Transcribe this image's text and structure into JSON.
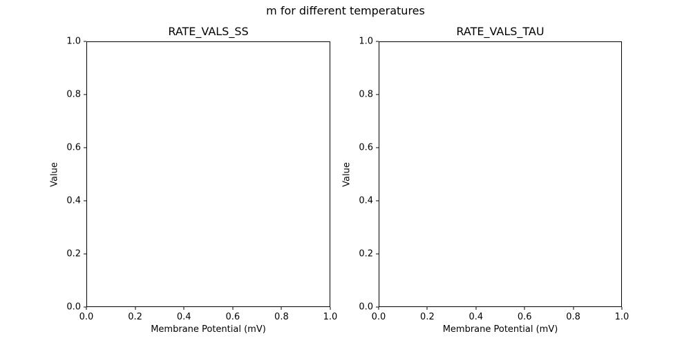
{
  "figure": {
    "suptitle": "m for different temperatures",
    "background_color": "#ffffff",
    "text_color": "#000000",
    "spine_color": "#000000"
  },
  "chart_data": [
    {
      "type": "line",
      "title": "RATE_VALS_SS",
      "xlabel": "Membrane Potential (mV)",
      "ylabel": "Value",
      "xlim": [
        0.0,
        1.0
      ],
      "ylim": [
        0.0,
        1.0
      ],
      "xtick_labels": [
        "0.0",
        "0.2",
        "0.4",
        "0.6",
        "0.8",
        "1.0"
      ],
      "ytick_labels": [
        "0.0",
        "0.2",
        "0.4",
        "0.6",
        "0.8",
        "1.0"
      ],
      "series": [],
      "grid": false,
      "legend": "none"
    },
    {
      "type": "line",
      "title": "RATE_VALS_TAU",
      "xlabel": "Membrane Potential (mV)",
      "ylabel": "Value",
      "xlim": [
        0.0,
        1.0
      ],
      "ylim": [
        0.0,
        1.0
      ],
      "xtick_labels": [
        "0.0",
        "0.2",
        "0.4",
        "0.6",
        "0.8",
        "1.0"
      ],
      "ytick_labels": [
        "0.0",
        "0.2",
        "0.4",
        "0.6",
        "0.8",
        "1.0"
      ],
      "series": [],
      "grid": false,
      "legend": "none"
    }
  ]
}
